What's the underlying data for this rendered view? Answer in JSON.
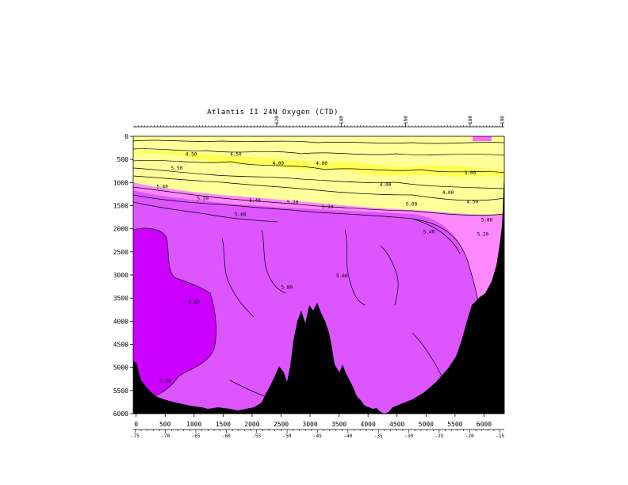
{
  "chart_data": {
    "type": "heatmap",
    "title": "Atlantis II 24N Oxygen (CTD)",
    "xlabel": "",
    "ylabel": "",
    "x_distance": {
      "range": [
        -50,
        6350
      ],
      "ticks": [
        0,
        500,
        1000,
        1500,
        2000,
        2500,
        3000,
        3500,
        4000,
        4500,
        5000,
        5500,
        6000
      ]
    },
    "x_longitude": {
      "range": [
        -75.3,
        -14.3
      ],
      "ticks": [
        -75,
        -70,
        -65,
        -60,
        -55,
        -50,
        -45,
        -40,
        -35,
        -30,
        -25,
        -20,
        -15
      ]
    },
    "stations": {
      "range": [
        75.5,
        190.6
      ],
      "ticks": [
        120,
        140,
        160,
        180,
        190
      ]
    },
    "y_depth": {
      "range": [
        0,
        6000
      ],
      "reversed": true,
      "ticks": [
        0,
        500,
        1000,
        1500,
        2000,
        2500,
        3000,
        3500,
        4000,
        4500,
        5000,
        5500,
        6000
      ]
    },
    "colors": {
      "low": "#ffff66",
      "mid_low": "#ffff99",
      "mid": "#ff88ff",
      "mid_high": "#dd55ff",
      "high": "#cc00ff",
      "bottom": "#000000"
    },
    "contour_labels": [
      {
        "text": "4.50",
        "x": 950,
        "y": 420
      },
      {
        "text": "4.50",
        "x": 1720,
        "y": 420
      },
      {
        "text": "4.00",
        "x": 2450,
        "y": 620
      },
      {
        "text": "4.00",
        "x": 3200,
        "y": 620
      },
      {
        "text": "5.50",
        "x": 700,
        "y": 720
      },
      {
        "text": "5.40",
        "x": 450,
        "y": 1120
      },
      {
        "text": "5.20",
        "x": 1150,
        "y": 1380
      },
      {
        "text": "5.40",
        "x": 2050,
        "y": 1420
      },
      {
        "text": "5.20",
        "x": 2700,
        "y": 1460
      },
      {
        "text": "5.20",
        "x": 3300,
        "y": 1560
      },
      {
        "text": "5.60",
        "x": 1800,
        "y": 1720
      },
      {
        "text": "4.00",
        "x": 4300,
        "y": 1080
      },
      {
        "text": "4.00",
        "x": 5380,
        "y": 1250
      },
      {
        "text": "3.00",
        "x": 5760,
        "y": 820
      },
      {
        "text": "5.00",
        "x": 4750,
        "y": 1500
      },
      {
        "text": "4.50",
        "x": 5800,
        "y": 1450
      },
      {
        "text": "5.00",
        "x": 6050,
        "y": 1840
      },
      {
        "text": "5.40",
        "x": 5050,
        "y": 2100
      },
      {
        "text": "5.20",
        "x": 5980,
        "y": 2150
      },
      {
        "text": "5.60",
        "x": 3550,
        "y": 3050
      },
      {
        "text": "5.80",
        "x": 2600,
        "y": 3300
      },
      {
        "text": "6.00",
        "x": 1000,
        "y": 3620
      },
      {
        "text": "6.00",
        "x": 500,
        "y": 5320
      }
    ],
    "grid": false
  }
}
